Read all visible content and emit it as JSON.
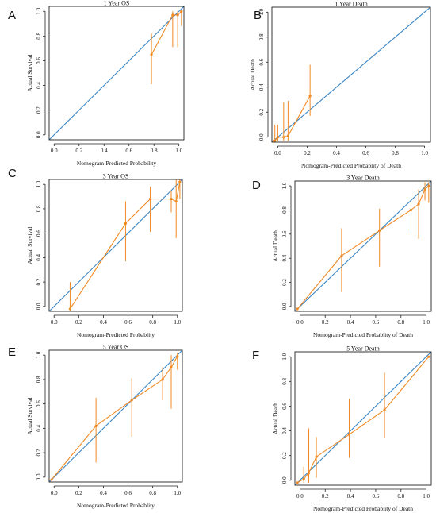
{
  "chart_data": [
    {
      "letter": "A",
      "type": "line",
      "title": "1 Year OS",
      "xlabel": "Nomogram-Predicted Probability",
      "ylabel": "Actual Survival",
      "xlim": [
        -0.04,
        1.04
      ],
      "ylim": [
        -0.04,
        1.04
      ],
      "ticks": [
        0.0,
        0.2,
        0.4,
        0.6,
        0.8,
        1.0
      ],
      "tick_labels": [
        "0.0",
        "0.2",
        "0.4",
        "0.6",
        "0.8",
        "1.0"
      ],
      "x": [
        0.78,
        0.95,
        0.99,
        1.02
      ],
      "y": [
        0.65,
        0.97,
        0.97,
        1.0
      ],
      "err_low": [
        0.41,
        0.71,
        0.71,
        0.88
      ],
      "err_high": [
        0.82,
        1.0,
        1.0,
        1.0
      ],
      "reference_line": "diagonal"
    },
    {
      "letter": "B",
      "type": "line",
      "title": "1 Year Death",
      "xlabel": "Nomogram-Predicted Probablity of Death",
      "ylabel": "Actual Death",
      "xlim": [
        -0.04,
        1.04
      ],
      "ylim": [
        -0.04,
        1.04
      ],
      "ticks": [
        0.0,
        0.2,
        0.4,
        0.6,
        0.8,
        1.0
      ],
      "tick_labels": [
        "0.0",
        "0.2",
        "0.4",
        "0.6",
        "0.8",
        "1.0"
      ],
      "x": [
        -0.02,
        0.0,
        0.04,
        0.07,
        0.22
      ],
      "y": [
        -0.03,
        0.0,
        0.0,
        0.01,
        0.33
      ],
      "err_low": [
        -0.03,
        -0.03,
        -0.03,
        -0.03,
        0.17
      ],
      "err_high": [
        0.1,
        0.1,
        0.28,
        0.29,
        0.58
      ],
      "reference_line": "diagonal"
    },
    {
      "letter": "C",
      "type": "line",
      "title": "3 Year OS",
      "xlabel": "Nomogram-Predicted Probablity",
      "ylabel": "Actual Survival",
      "xlim": [
        -0.04,
        1.04
      ],
      "ylim": [
        -0.04,
        1.04
      ],
      "ticks": [
        0.0,
        0.2,
        0.4,
        0.6,
        0.8,
        1.0
      ],
      "tick_labels": [
        "0.0",
        "0.2",
        "0.4",
        "0.6",
        "0.8",
        "1.0"
      ],
      "x": [
        0.13,
        0.58,
        0.78,
        0.95,
        0.99,
        1.02
      ],
      "y": [
        -0.02,
        0.68,
        0.88,
        0.88,
        0.86,
        1.02
      ],
      "err_low": [
        -0.04,
        0.37,
        0.61,
        0.77,
        0.56,
        0.88
      ],
      "err_high": [
        0.2,
        0.86,
        0.98,
        0.95,
        1.04,
        1.04
      ],
      "reference_line": "diagonal"
    },
    {
      "letter": "D",
      "type": "line",
      "title": "3 Year Death",
      "xlabel": "Nomogram-Predicted Probablity of Death",
      "ylabel": "Actual Death",
      "xlim": [
        -0.04,
        1.04
      ],
      "ylim": [
        -0.04,
        1.04
      ],
      "ticks": [
        0.0,
        0.2,
        0.4,
        0.6,
        0.8,
        1.0
      ],
      "tick_labels": [
        "0.0",
        "0.2",
        "0.4",
        "0.6",
        "0.8",
        "1.0"
      ],
      "x": [
        -0.02,
        0.33,
        0.63,
        0.88,
        0.94,
        0.99,
        1.02
      ],
      "y": [
        -0.02,
        0.42,
        0.63,
        0.8,
        0.85,
        0.97,
        1.0
      ],
      "err_low": [
        -0.02,
        0.12,
        0.33,
        0.63,
        0.56,
        0.88,
        0.86
      ],
      "err_high": [
        -0.02,
        0.65,
        0.81,
        0.9,
        0.97,
        1.03,
        1.03
      ],
      "reference_line": "diagonal"
    },
    {
      "letter": "E",
      "type": "line",
      "title": "5 Year OS",
      "xlabel": "Nomogram-Predicted Probablity",
      "ylabel": "Actual Survival",
      "xlim": [
        -0.04,
        1.04
      ],
      "ylim": [
        -0.04,
        1.04
      ],
      "ticks": [
        0.0,
        0.2,
        0.4,
        0.6,
        0.8,
        1.0
      ],
      "tick_labels": [
        "0.0",
        "0.2",
        "0.4",
        "0.6",
        "0.8",
        "1.0"
      ],
      "x": [
        -0.02,
        0.34,
        0.63,
        0.88,
        0.95,
        1.0
      ],
      "y": [
        -0.02,
        0.42,
        0.63,
        0.8,
        0.9,
        0.99
      ],
      "err_low": [
        -0.02,
        0.12,
        0.33,
        0.63,
        0.56,
        0.88
      ],
      "err_high": [
        -0.02,
        0.65,
        0.81,
        0.9,
        1.0,
        1.02
      ],
      "reference_line": "diagonal"
    },
    {
      "letter": "F",
      "type": "line",
      "title": "5 Year Death",
      "xlabel": "Nomogram-Predicted Probablity of Death",
      "ylabel": "Actual Death",
      "xlim": [
        -0.04,
        1.04
      ],
      "ylim": [
        -0.04,
        1.04
      ],
      "ticks": [
        0.0,
        0.2,
        0.4,
        0.6,
        0.8,
        1.0
      ],
      "tick_labels": [
        "0.0",
        "0.2",
        "0.4",
        "0.6",
        "0.8",
        "1.0"
      ],
      "x": [
        -0.02,
        0.03,
        0.07,
        0.13,
        0.39,
        0.67,
        1.02
      ],
      "y": [
        -0.02,
        0.01,
        0.06,
        0.19,
        0.37,
        0.57,
        1.0
      ],
      "err_low": [
        -0.02,
        -0.02,
        -0.02,
        0.02,
        0.18,
        0.34,
        1.0
      ],
      "err_high": [
        -0.02,
        0.11,
        0.42,
        0.35,
        0.66,
        0.87,
        1.0
      ],
      "reference_line": "diagonal"
    }
  ]
}
